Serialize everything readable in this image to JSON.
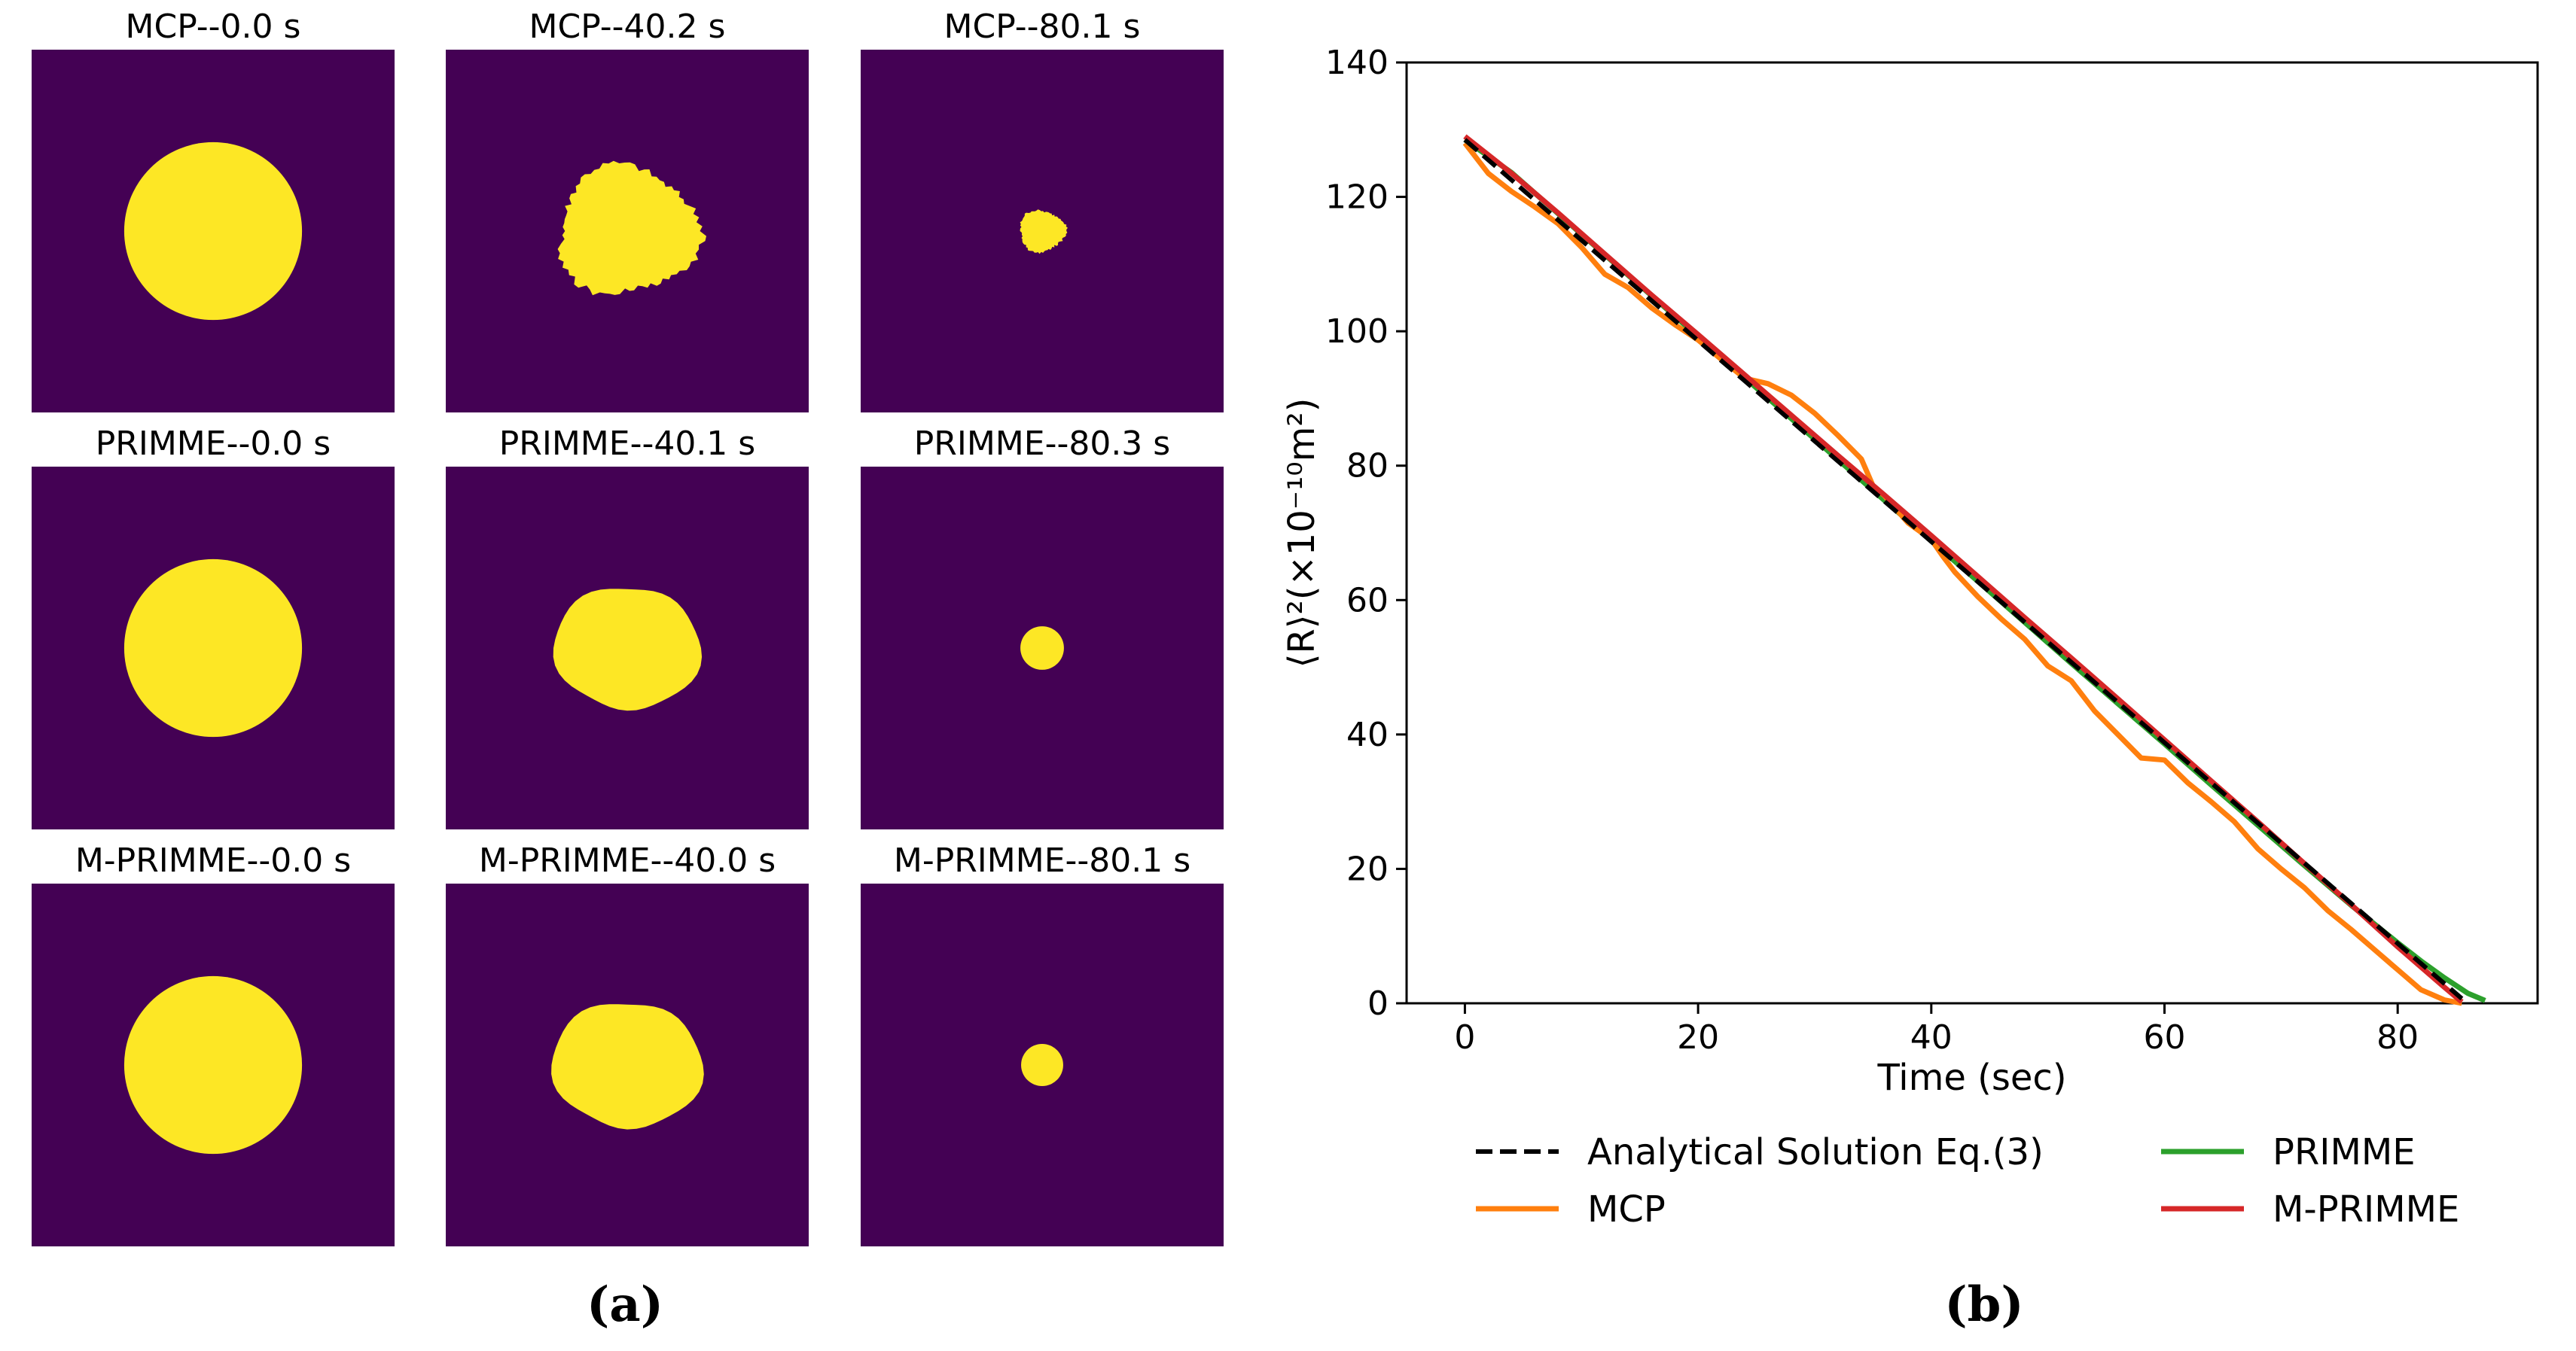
{
  "panel_a": {
    "caption": "(a)",
    "background_color": "#440154",
    "grain_color": "#fde725",
    "panels": [
      {
        "title": "MCP--0.0 s",
        "shape": "circle",
        "radius_fraction": 0.245
      },
      {
        "title": "MCP--40.2 s",
        "shape": "rough",
        "radius_fraction": 0.185
      },
      {
        "title": "MCP--80.1 s",
        "shape": "rough",
        "radius_fraction": 0.06
      },
      {
        "title": "PRIMME--0.0 s",
        "shape": "circle",
        "radius_fraction": 0.245
      },
      {
        "title": "PRIMME--40.1 s",
        "shape": "smooth",
        "radius_fraction": 0.185
      },
      {
        "title": "PRIMME--80.3 s",
        "shape": "circle",
        "radius_fraction": 0.06
      },
      {
        "title": "M-PRIMME--0.0 s",
        "shape": "circle",
        "radius_fraction": 0.245
      },
      {
        "title": "M-PRIMME--40.0 s",
        "shape": "smooth",
        "radius_fraction": 0.19
      },
      {
        "title": "M-PRIMME--80.1 s",
        "shape": "circle",
        "radius_fraction": 0.058
      }
    ]
  },
  "chart_data": {
    "type": "line",
    "caption": "(b)",
    "title": "",
    "xlabel": "Time (sec)",
    "ylabel": "⟨R⟩²(×10⁻¹⁰m²)",
    "xlim": [
      -5,
      92
    ],
    "ylim": [
      0,
      140
    ],
    "xticks": [
      0,
      20,
      40,
      60,
      80
    ],
    "yticks": [
      0,
      20,
      40,
      60,
      80,
      100,
      120,
      140
    ],
    "grid": false,
    "legend_position": "below",
    "series": [
      {
        "name": "Analytical Solution Eq.(3)",
        "color": "#000000",
        "dashed": true,
        "x": [
          0,
          20,
          40,
          60,
          80,
          85.5
        ],
        "y": [
          128.5,
          98.6,
          68.7,
          38.8,
          8.9,
          0.7
        ]
      },
      {
        "name": "MCP",
        "color": "#ff7f0e",
        "dashed": false,
        "x": [
          0,
          2,
          4,
          6,
          8,
          10,
          12,
          14,
          16,
          18,
          20,
          22,
          24,
          26,
          28,
          30,
          32,
          34,
          35,
          36,
          38,
          40,
          41,
          42,
          44,
          46,
          48,
          50,
          52,
          54,
          56,
          58,
          60,
          62,
          64,
          66,
          68,
          70,
          72,
          74,
          76,
          78,
          80,
          82,
          84,
          85.5
        ],
        "y": [
          128,
          123.5,
          120.8,
          118.5,
          116,
          112.5,
          108.5,
          106.5,
          103.5,
          101,
          98.7,
          95.8,
          93,
          92.2,
          90.5,
          87.8,
          84.5,
          81,
          77,
          75.5,
          71.5,
          69,
          66.5,
          64.2,
          60.5,
          57.2,
          54.2,
          50.2,
          48,
          43.5,
          40,
          36.5,
          36.2,
          32.8,
          30,
          27,
          23,
          20,
          17.2,
          13.8,
          11,
          8,
          5,
          2,
          0.5,
          0
        ]
      },
      {
        "name": "PRIMME",
        "color": "#2ca02c",
        "dashed": false,
        "x": [
          0,
          4,
          8,
          12,
          16,
          20,
          24,
          28,
          32,
          36,
          40,
          44,
          48,
          52,
          56,
          60,
          64,
          68,
          72,
          76,
          80,
          82,
          84,
          86,
          87.5
        ],
        "y": [
          128.5,
          123.6,
          117.5,
          111.4,
          105.3,
          99.2,
          93.1,
          87,
          80.9,
          74.8,
          68.8,
          62.8,
          56.7,
          50.6,
          44.6,
          38.6,
          32.5,
          26.5,
          20.5,
          14.6,
          9,
          6.3,
          3.8,
          1.5,
          0.4
        ]
      },
      {
        "name": "M-PRIMME",
        "color": "#d62728",
        "dashed": false,
        "x": [
          0,
          4,
          8,
          12,
          16,
          20,
          24,
          28,
          32,
          36,
          40,
          44,
          48,
          52,
          56,
          60,
          64,
          68,
          72,
          76,
          80,
          82,
          84,
          85.5
        ],
        "y": [
          129,
          123.5,
          117.6,
          111.5,
          105.4,
          99.5,
          93.5,
          87.5,
          81.5,
          75.6,
          69.6,
          63.5,
          57.4,
          51.4,
          45.3,
          39.2,
          33.1,
          27,
          20.8,
          14.7,
          8.4,
          5.4,
          2.4,
          0.2
        ]
      }
    ]
  }
}
